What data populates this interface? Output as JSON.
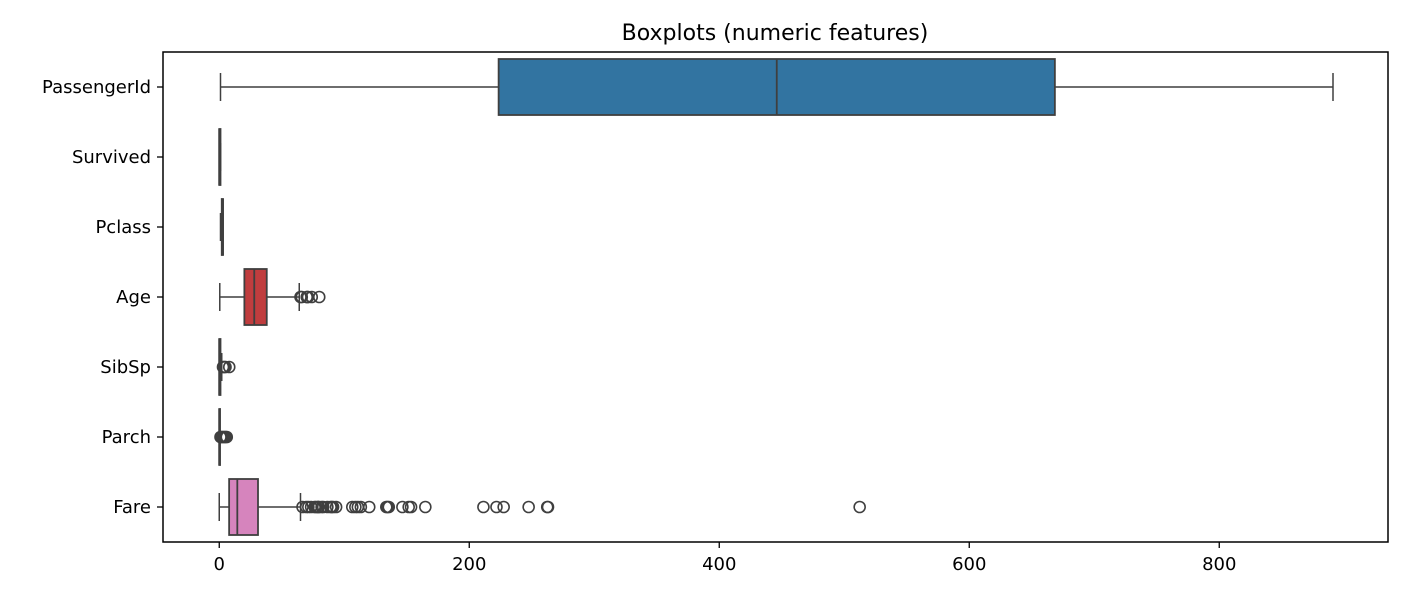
{
  "chart_data": {
    "type": "boxplot",
    "orientation": "horizontal",
    "title": "Boxplots (numeric features)",
    "xlabel": "",
    "ylabel": "",
    "xlim": [
      -45,
      935
    ],
    "x_ticks": [
      0,
      200,
      400,
      600,
      800
    ],
    "grid": false,
    "series": [
      {
        "name": "PassengerId",
        "color": "#3274a1",
        "min": 1,
        "q1": 223.5,
        "median": 446,
        "q3": 668.5,
        "max": 891,
        "fliers": []
      },
      {
        "name": "Survived",
        "color": "#e1812c",
        "min": 0,
        "q1": 0,
        "median": 0,
        "q3": 1,
        "max": 1,
        "fliers": []
      },
      {
        "name": "Pclass",
        "color": "#3a923a",
        "min": 1,
        "q1": 2,
        "median": 3,
        "q3": 3,
        "max": 3,
        "fliers": []
      },
      {
        "name": "Age",
        "color": "#c03d3e",
        "min": 0.42,
        "q1": 20.1,
        "median": 28,
        "q3": 38,
        "max": 64,
        "fliers": [
          65,
          66,
          70,
          70.5,
          71,
          74,
          80
        ]
      },
      {
        "name": "SibSp",
        "color": "#9372b2",
        "min": 0,
        "q1": 0,
        "median": 0,
        "q3": 1,
        "max": 2,
        "fliers": [
          3,
          4,
          5,
          8
        ]
      },
      {
        "name": "Parch",
        "color": "#845b53",
        "min": 0,
        "q1": 0,
        "median": 0,
        "q3": 0,
        "max": 0,
        "fliers": [
          1,
          2,
          3,
          4,
          5,
          6
        ]
      },
      {
        "name": "Fare",
        "color": "#d684bd",
        "min": 0,
        "q1": 7.9,
        "median": 14.45,
        "q3": 31,
        "max": 65,
        "fliers": [
          66.6,
          69.55,
          71.28,
          73.5,
          76.29,
          77.29,
          78.85,
          79.2,
          79.65,
          81.86,
          83.16,
          86.5,
          89.1,
          90,
          91.08,
          93.5,
          106.43,
          108.9,
          110.88,
          113.28,
          120,
          133.65,
          134.5,
          135.63,
          146.52,
          151.55,
          153.46,
          164.87,
          211.34,
          221.78,
          227.53,
          247.52,
          262.38,
          263,
          512.33
        ]
      }
    ]
  }
}
